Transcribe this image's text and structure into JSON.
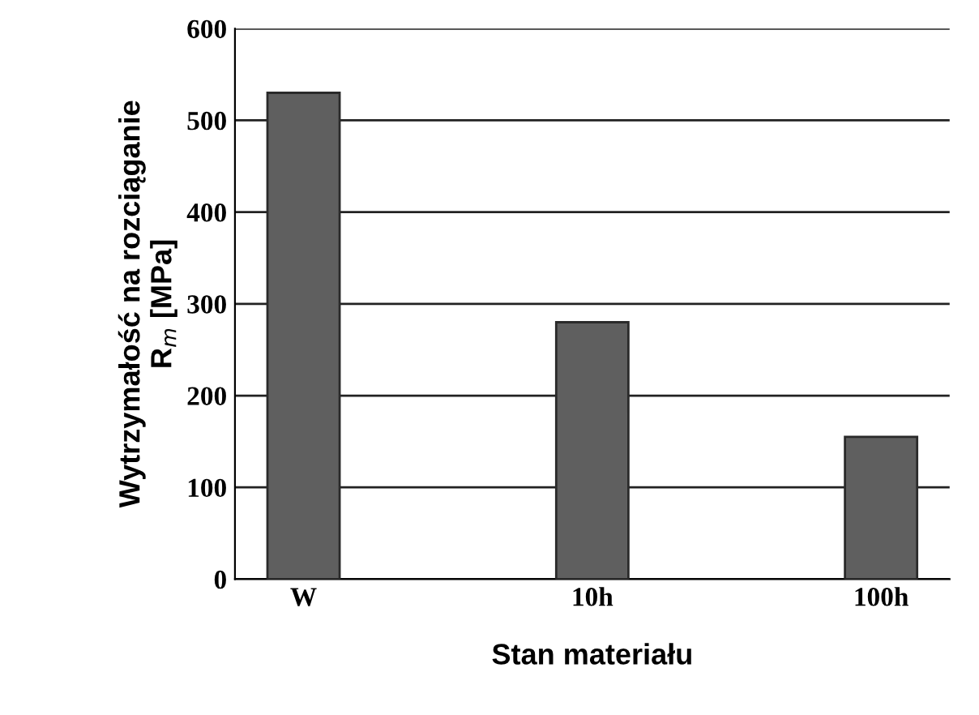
{
  "chart_data": {
    "type": "bar",
    "categories": [
      "W",
      "10h",
      "100h"
    ],
    "values": [
      530,
      280,
      155
    ],
    "color": "#5f5f5f",
    "xlabel": "Stan materiału",
    "ylabel": "Wytrzymałość na rozciąganie\nR$_{m}$ [MPa]",
    "ylim": [
      0,
      600
    ],
    "yticks": [
      0,
      100,
      200,
      300,
      400,
      500,
      600
    ],
    "grid": "y"
  }
}
